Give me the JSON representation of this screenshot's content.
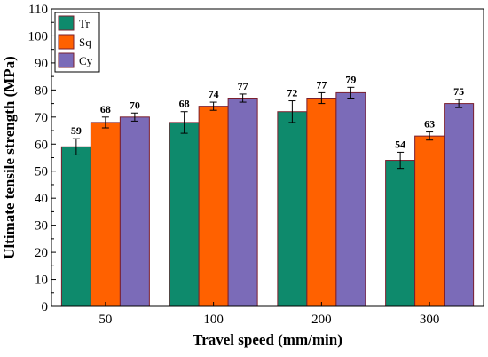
{
  "chart_data": {
    "type": "bar",
    "categories": [
      "50",
      "100",
      "200",
      "300"
    ],
    "series": [
      {
        "name": "Tr",
        "color": "#0e8a6c",
        "values": [
          59,
          68,
          72,
          54
        ],
        "errors": [
          3,
          4,
          4,
          3
        ]
      },
      {
        "name": "Sq",
        "color": "#ff6100",
        "values": [
          68,
          74,
          77,
          63
        ],
        "errors": [
          2,
          1.5,
          2,
          1.5
        ]
      },
      {
        "name": "Cy",
        "color": "#7b6bb8",
        "values": [
          70,
          77,
          79,
          75
        ],
        "errors": [
          1.5,
          1.5,
          2,
          1.5
        ]
      }
    ],
    "xlabel": "Travel speed (mm/min)",
    "ylabel": "Ultimate tensile strength (MPa)",
    "ylim": [
      0,
      110
    ],
    "yticks": [
      0,
      10,
      20,
      30,
      40,
      50,
      60,
      70,
      80,
      90,
      100,
      110
    ],
    "legend_position": "top-left",
    "grid": false
  }
}
